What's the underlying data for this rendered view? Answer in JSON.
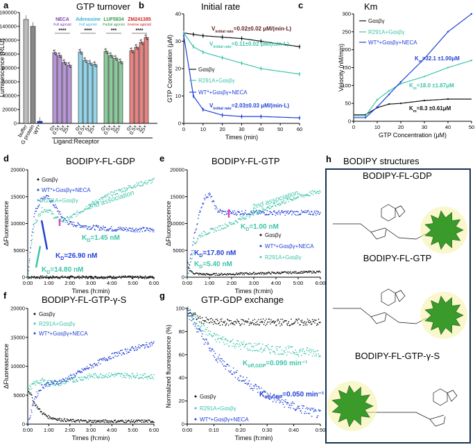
{
  "colors": {
    "black": "#111111",
    "blue": "#1f3fd6",
    "teal": "#3cc4a8",
    "purple": "#7b3fb4",
    "cyan": "#3bb0d6",
    "green": "#2e9c4a",
    "red": "#d21f1f",
    "dark": "#5a1a1a",
    "box": "#16304f"
  },
  "panels": {
    "a": {
      "letter": "a",
      "title": "GTP turnover"
    },
    "b": {
      "letter": "b",
      "title": "Initial rate"
    },
    "c": {
      "letter": "c",
      "title": "Km"
    },
    "d": {
      "letter": "d",
      "title": "BODIPY-FL-GDP"
    },
    "e": {
      "letter": "e",
      "title": "BODIPY-FL-GTP"
    },
    "f": {
      "letter": "f",
      "title": "BODIPY-FL-GTP-γ-S"
    },
    "g": {
      "letter": "g",
      "title": "GTP-GDP exchange"
    },
    "h": {
      "letter": "h",
      "title": "BODIPY structures"
    }
  },
  "structures": [
    "BODIPY-FL-GDP",
    "BODIPY-FL-GTP",
    "BODIPY-FL-GTP-γ-S"
  ],
  "chart_data": [
    {
      "id": "a",
      "type": "bar",
      "title": "GTP turnover",
      "ylabel": "Luminescence (RLU)",
      "xlabel": "Ligand:Receptor",
      "ylim": [
        0,
        160000
      ],
      "yticks": [
        "0",
        "20000",
        "40000",
        "60000",
        "80000",
        "100000",
        "120000",
        "140000",
        "160000"
      ],
      "controls": {
        "categories": [
          "buffer",
          "G protein",
          "WT*"
        ],
        "values": [
          150000,
          140000,
          3000
        ]
      },
      "groups": [
        {
          "name": "NECA",
          "subtitle": "Full agonist",
          "color": "#7b3fb4",
          "categories": [
            "0×",
            "0.5×",
            "5×",
            "25×"
          ],
          "values": [
            102000,
            98000,
            88000,
            84000
          ],
          "sig": "****"
        },
        {
          "name": "Adenosine",
          "subtitle": "Full agonist",
          "color": "#3bb0d6",
          "categories": [
            "0×",
            "0.5×",
            "5×",
            "25×"
          ],
          "values": [
            103000,
            91000,
            87000,
            85000
          ],
          "sig": "****"
        },
        {
          "name": "LUF5834",
          "subtitle": "Partial agonist",
          "color": "#2e9c4a",
          "categories": [
            "0×",
            "0.5×",
            "5×",
            "25×"
          ],
          "values": [
            104000,
            98000,
            94000,
            89000
          ],
          "sig": "***"
        },
        {
          "name": "ZM241385",
          "subtitle": "Inverse agonist",
          "color": "#d21f1f",
          "categories": [
            "0×",
            "0.5×",
            "5×",
            "25×"
          ],
          "values": [
            105000,
            110000,
            117000,
            124000
          ],
          "sig": "****"
        }
      ]
    },
    {
      "id": "b",
      "type": "scatter",
      "title": "Initial rate",
      "xlabel": "Times (min)",
      "ylabel": "GTP Concentration (μM)",
      "xlim": [
        0,
        60
      ],
      "ylim": [
        0,
        40
      ],
      "xticks": [
        "0",
        "10",
        "20",
        "30",
        "40",
        "50",
        "60"
      ],
      "yticks": [
        "0",
        "10",
        "20",
        "30",
        "40"
      ],
      "series": [
        {
          "name": "Gαsβγ",
          "color": "#111111",
          "x": [
            0,
            5,
            10,
            20,
            30,
            40,
            60
          ],
          "y": [
            33,
            32.5,
            32,
            31.5,
            31,
            30,
            28
          ],
          "annotation": "V_initial rate = 0.02±0.02 μM/(min·L)"
        },
        {
          "name": "R291A+Gαsβγ",
          "color": "#3cc4a8",
          "x": [
            0,
            5,
            10,
            20,
            30,
            40,
            60
          ],
          "y": [
            33,
            28,
            26,
            24,
            22,
            20,
            18
          ],
          "annotation": "V_initial rate = 0.11±0.02 μM/(min·L)"
        },
        {
          "name": "WT*+Gαsβγ+NECA",
          "color": "#1f3fd6",
          "x": [
            0,
            5,
            10,
            20,
            30,
            40,
            60
          ],
          "y": [
            32,
            10,
            5,
            3,
            2.5,
            2.5,
            2
          ],
          "annotation": "V_initial rate = 2.03±0.03 μM/(min·L)"
        }
      ],
      "v_labels": {
        "prefix": "V",
        "sub": "initial rate"
      },
      "v_values": [
        "=0.02±0.02 μM/(min·L)",
        "=0.11±0.02 μM/(min·L)",
        "=2.03±0.03 μM/(min·L)"
      ]
    },
    {
      "id": "c",
      "type": "scatter",
      "title": "Km",
      "xlabel": "GTP Concentration (μM)",
      "ylabel": "Velocity (nM/min)",
      "xlim": [
        0,
        50
      ],
      "ylim": [
        0,
        300
      ],
      "xticks": [
        "0",
        "10",
        "20",
        "30",
        "40",
        "50"
      ],
      "yticks": [
        "0",
        "50",
        "100",
        "150",
        "200",
        "250",
        "300"
      ],
      "series": [
        {
          "name": "Gαsβγ",
          "color": "#111111",
          "x": [
            5,
            10,
            15,
            20,
            30,
            40
          ],
          "y": [
            18,
            38,
            48,
            50,
            58,
            62
          ]
        },
        {
          "name": "R291A+Gαsβγ",
          "color": "#3cc4a8",
          "x": [
            5,
            10,
            15,
            20,
            30,
            40,
            50
          ],
          "y": [
            15,
            60,
            85,
            105,
            125,
            150,
            170
          ]
        },
        {
          "name": "WT*+Gαsβγ+NECA",
          "color": "#1f3fd6",
          "x": [
            5,
            10,
            15,
            20,
            30,
            40,
            50
          ],
          "y": [
            10,
            40,
            75,
            110,
            175,
            250,
            300
          ]
        }
      ],
      "km_values": [
        "=32.1 ±1.00μM",
        "=18.0 ±1.87μM",
        "=8.3 ±0.61μM"
      ]
    },
    {
      "id": "d",
      "type": "scatter",
      "title": "BODIPY-FL-GDP",
      "xlabel": "Times (h:min)",
      "ylabel": "ΔFluoreascence",
      "xlim": [
        0,
        360
      ],
      "ylim": [
        0,
        20000
      ],
      "xticks": [
        "0:00",
        "1:00",
        "2:00",
        "3:00",
        "4:00",
        "5:00",
        "6:00"
      ],
      "yticks": [
        "0",
        "5000",
        "10000",
        "15000",
        "20000"
      ],
      "series": [
        {
          "name": "Gαsβγ",
          "color": "#111111",
          "x": [
            0,
            30,
            60,
            120,
            180,
            240,
            300,
            360
          ],
          "y": [
            0,
            0,
            0,
            0,
            0,
            0,
            0,
            0
          ]
        },
        {
          "name": "WT*+Gαsβγ+NECA",
          "color": "#1f3fd6",
          "x": [
            0,
            10,
            20,
            40,
            60,
            80,
            100,
            120,
            180,
            240,
            300,
            360
          ],
          "y": [
            0,
            7000,
            12000,
            14800,
            14800,
            13000,
            11000,
            10000,
            9300,
            9000,
            8900,
            8800
          ]
        },
        {
          "name": "R291A+Gαsβγ",
          "color": "#3cc4a8",
          "x": [
            0,
            10,
            20,
            40,
            60,
            80,
            100,
            120,
            180,
            240,
            300,
            360
          ],
          "y": [
            0,
            6000,
            10000,
            12500,
            12500,
            11000,
            10500,
            11000,
            13500,
            15500,
            17000,
            18000
          ]
        }
      ],
      "annotations": [
        "2nd association",
        "K_D=1.45 nM",
        "K_D=26.90 nM",
        "K_D=14.80 nM"
      ]
    },
    {
      "id": "e",
      "type": "scatter",
      "title": "BODIPY-FL-GTP",
      "xlabel": "Times (h:min)",
      "ylabel": "ΔFluoreascence",
      "xlim": [
        0,
        360
      ],
      "ylim": [
        0,
        20000
      ],
      "xticks": [
        "0:00",
        "1:00",
        "2:00",
        "3:00",
        "4:00",
        "5:00",
        "6:00"
      ],
      "yticks": [
        "0",
        "5000",
        "10000",
        "15000",
        "20000"
      ],
      "series": [
        {
          "name": "Gαsβγ",
          "color": "#111111",
          "x": [
            0,
            5,
            15,
            30,
            60,
            120,
            180,
            240,
            300,
            360
          ],
          "y": [
            3000,
            1500,
            800,
            600,
            500,
            600,
            700,
            800,
            900,
            1000
          ]
        },
        {
          "name": "WT*+Gαsβγ+NECA",
          "color": "#1f3fd6",
          "x": [
            0,
            10,
            20,
            30,
            40,
            50,
            60,
            80,
            100,
            120,
            180,
            240,
            300,
            360
          ],
          "y": [
            0,
            4000,
            8000,
            11000,
            13500,
            15000,
            15500,
            12500,
            12000,
            12000,
            12000,
            12000,
            12000,
            12000
          ]
        },
        {
          "name": "R291A+Gαsβγ",
          "color": "#3cc4a8",
          "x": [
            0,
            10,
            20,
            30,
            40,
            60,
            80,
            100,
            120,
            180,
            240,
            300,
            360
          ],
          "y": [
            0,
            3000,
            6000,
            7500,
            8000,
            8500,
            9000,
            9500,
            10000,
            12000,
            13500,
            15000,
            16000
          ]
        }
      ],
      "annotations": [
        "2nd association",
        "K_D=1.00 nM",
        "K_D=17.80 nM",
        "K_D=5.40 nM"
      ]
    },
    {
      "id": "f",
      "type": "scatter",
      "title": "BODIPY-FL-GTP-γ-S",
      "xlabel": "Times (h:min)",
      "ylabel": "ΔFluoreascence",
      "xlim": [
        0,
        360
      ],
      "ylim": [
        0,
        20000
      ],
      "xticks": [
        "0:00",
        "1:00",
        "2:00",
        "3:00",
        "4:00",
        "5:00",
        "6:00"
      ],
      "yticks": [
        "0",
        "5000",
        "10000",
        "15000",
        "20000"
      ],
      "series": [
        {
          "name": "Gαsβγ",
          "color": "#111111",
          "x": [
            0,
            10,
            20,
            40,
            60,
            90,
            120,
            180,
            240,
            300,
            360
          ],
          "y": [
            6000,
            5000,
            3500,
            2000,
            1200,
            800,
            600,
            500,
            500,
            500,
            500
          ]
        },
        {
          "name": "R291A+Gαsβγ",
          "color": "#3cc4a8",
          "x": [
            0,
            10,
            20,
            40,
            60,
            90,
            120,
            180,
            240,
            300,
            360
          ],
          "y": [
            6000,
            6500,
            7000,
            7500,
            7200,
            7000,
            7500,
            8300,
            8500,
            8400,
            8200
          ]
        },
        {
          "name": "WT*+Gαsβγ+NECA",
          "color": "#1f3fd6",
          "x": [
            0,
            10,
            20,
            40,
            60,
            90,
            120,
            180,
            240,
            300,
            360
          ],
          "y": [
            0,
            2000,
            4500,
            6500,
            7000,
            7300,
            8000,
            10000,
            11800,
            13000,
            14000
          ]
        }
      ]
    },
    {
      "id": "g",
      "type": "scatter",
      "title": "GTP-GDP exchange",
      "xlabel": "Times (h:min)",
      "ylabel": "Normalized fluoreascence (%)",
      "xlim": [
        0,
        50
      ],
      "ylim": [
        0,
        100
      ],
      "xticks": [
        "0:00",
        "0:10",
        "0:20",
        "0:30",
        "0:40",
        "0:50"
      ],
      "yticks": [
        "0",
        "20",
        "40",
        "60",
        "80",
        "100"
      ],
      "series": [
        {
          "name": "Gαsβγ",
          "color": "#111111",
          "x": [
            0,
            5,
            10,
            20,
            30,
            40,
            50
          ],
          "y": [
            98,
            90,
            88,
            88,
            88,
            88,
            88
          ]
        },
        {
          "name": "R291A+Gαsβγ",
          "color": "#3cc4a8",
          "x": [
            0,
            5,
            10,
            20,
            30,
            40,
            50
          ],
          "y": [
            98,
            85,
            75,
            68,
            65,
            63,
            62
          ]
        },
        {
          "name": "WT*+Gαsβγ+NECA",
          "color": "#1f3fd6",
          "x": [
            0,
            5,
            10,
            20,
            30,
            40,
            50
          ],
          "y": [
            98,
            78,
            60,
            40,
            25,
            15,
            8
          ]
        }
      ],
      "annotations": [
        "K_off,GDP=0.090 min⁻¹",
        "K_off,GDP=0.050 min⁻¹"
      ]
    }
  ]
}
